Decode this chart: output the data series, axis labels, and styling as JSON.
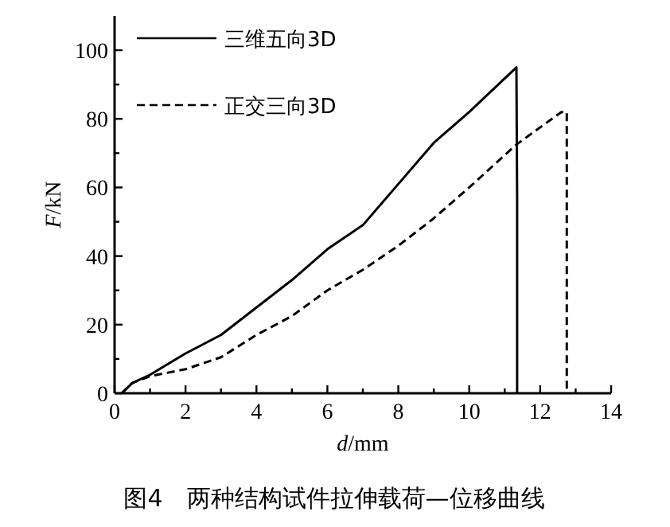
{
  "chart_data": {
    "type": "line",
    "xlabel": "*d*/mm",
    "ylabel": "*F*/kN",
    "xlim": [
      0,
      14
    ],
    "ylim": [
      0,
      110
    ],
    "xticks": [
      0,
      {
        "value": 1,
        "label": null
      },
      2,
      {
        "value": 3,
        "label": null
      },
      4,
      {
        "value": 5,
        "label": null
      },
      6,
      {
        "value": 7,
        "label": null
      },
      8,
      {
        "value": 9,
        "label": null
      },
      10,
      {
        "value": 11,
        "label": null
      },
      12,
      {
        "value": 13,
        "label": null
      },
      14
    ],
    "yticks": [
      0,
      {
        "value": 10,
        "label": null
      },
      20,
      {
        "value": 30,
        "label": null
      },
      40,
      {
        "value": 50,
        "label": null
      },
      60,
      {
        "value": 70,
        "label": null
      },
      80,
      {
        "value": 90,
        "label": null
      },
      100
    ],
    "legend": "top left",
    "series": [
      {
        "name": "三维五向3D",
        "color": "#000000",
        "line_style": "solid",
        "x": [
          0.2,
          0.5,
          1,
          2,
          3,
          4,
          5,
          6,
          7,
          8,
          9,
          10,
          11.33,
          11.35,
          11.35
        ],
        "values": [
          0,
          3,
          5.4,
          11.6,
          17,
          25,
          33,
          42,
          49,
          61,
          73,
          82,
          95,
          57,
          0
        ]
      },
      {
        "name": "正交三向3D",
        "color": "#000000",
        "line_style": "dashed",
        "x": [
          0.2,
          0.5,
          1,
          2,
          3,
          4,
          5,
          6,
          7,
          8,
          9,
          10,
          11.33,
          12.6,
          12.75,
          12.75
        ],
        "values": [
          0,
          3,
          5,
          7,
          10.5,
          17,
          22.5,
          30,
          36,
          43,
          51,
          60,
          72.5,
          82,
          82,
          0
        ]
      }
    ],
    "annotations": [
      "图4　两种结构试件拉伸载荷—位移曲线"
    ]
  }
}
